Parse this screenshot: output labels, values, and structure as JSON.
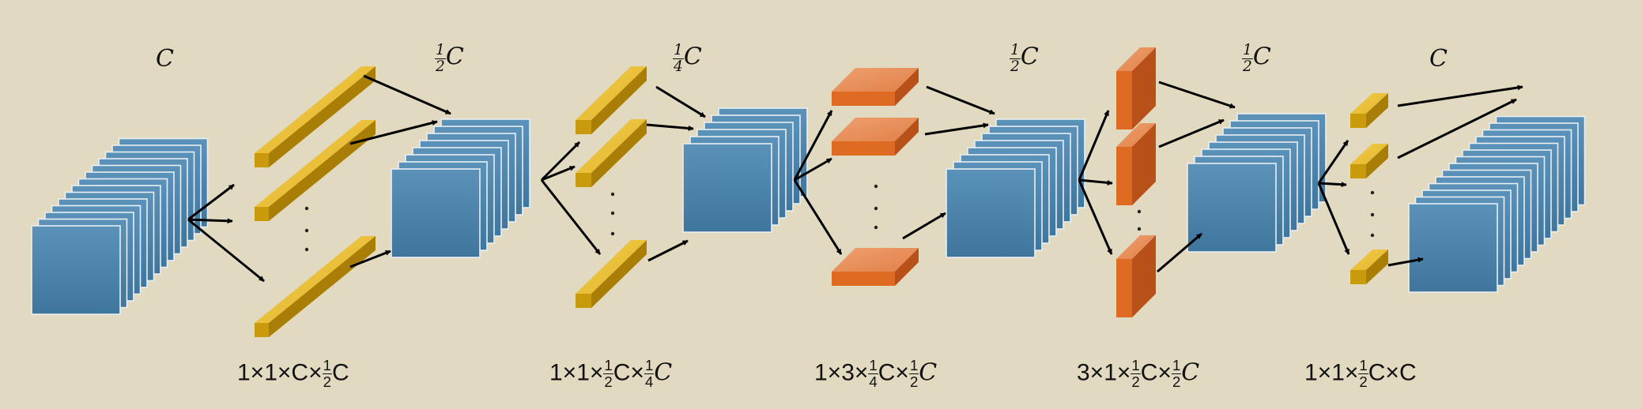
{
  "channel_labels": [
    "C",
    "½C",
    "¼C",
    "½C",
    "½C",
    "C"
  ],
  "kernel_labels": [
    "1×1×C×½C",
    "1×1×½C×¼C",
    "1×3×¼C×½C",
    "3×1×½C×½C",
    "1×1×½C×C"
  ],
  "colors": {
    "background": "#e2dac0",
    "feature_map": "#4f86ad",
    "conv_kernel_1x1": "#d8a818",
    "conv_kernel_1x3": "#e06a22",
    "conv_kernel_3x1": "#d85e1e",
    "arrow": "#000000"
  },
  "icons": [
    "feature-map-stack",
    "kernel-bar",
    "arrow"
  ]
}
